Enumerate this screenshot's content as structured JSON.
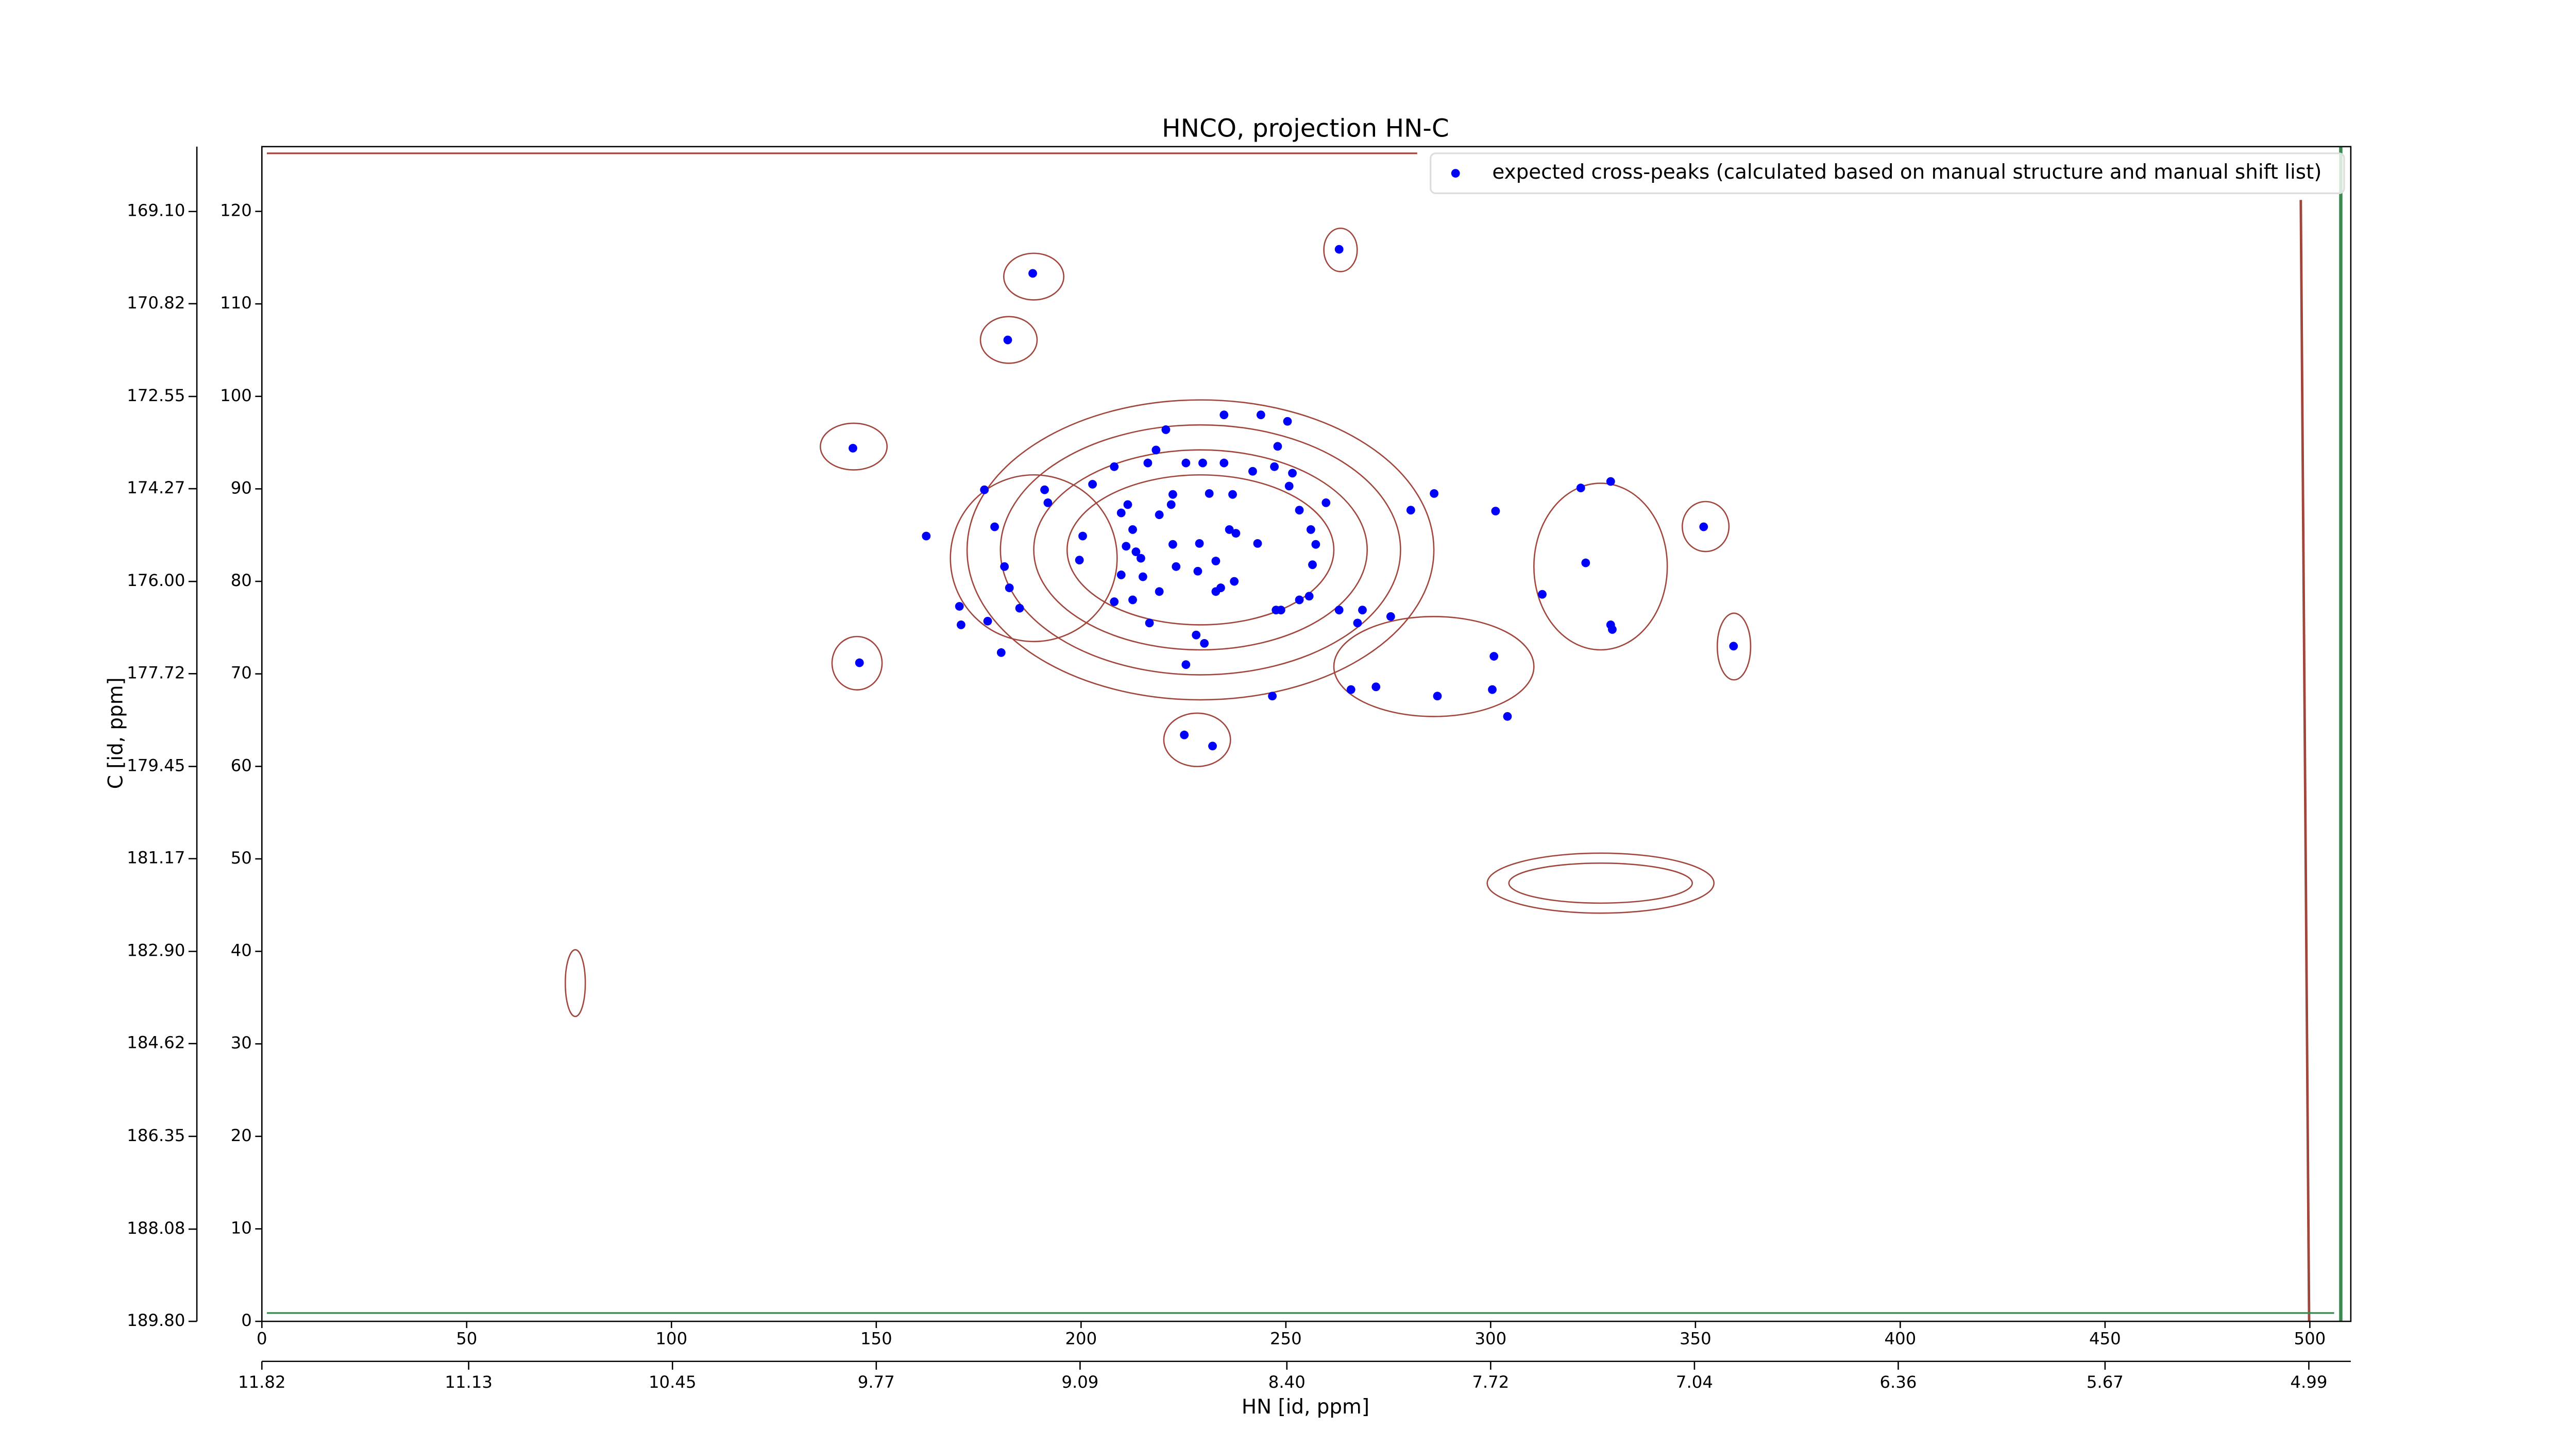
{
  "chart_data": {
    "type": "scatter",
    "title": "HNCO, projection HN-C",
    "xlabel": "HN [id, ppm]",
    "ylabel": "C [id, ppm]",
    "xlim": [
      0,
      510
    ],
    "xticks": [
      0,
      50,
      100,
      150,
      200,
      250,
      300,
      350,
      400,
      450,
      500
    ],
    "ylim": [
      0,
      127
    ],
    "yticks": [
      0,
      10,
      20,
      30,
      40,
      50,
      60,
      70,
      80,
      90,
      100,
      110,
      120
    ],
    "x2lim": [
      11.82,
      4.85
    ],
    "x2ticks": [
      11.82,
      11.13,
      10.45,
      9.77,
      9.09,
      {
        "value": 8.4,
        "label": "8.40"
      },
      7.72,
      7.04,
      6.36,
      5.67,
      4.99
    ],
    "y2lim": [
      189.8,
      167.89
    ],
    "y2ticks": [
      {
        "value": 169.1,
        "label": "169.10"
      },
      170.82,
      172.55,
      174.27,
      {
        "value": 176.0,
        "label": "176.00"
      },
      177.72,
      179.45,
      181.17,
      {
        "value": 182.9,
        "label": "182.90"
      },
      184.62,
      186.35,
      188.08,
      {
        "value": 189.8,
        "label": "189.80"
      }
    ],
    "legend": "upper right",
    "series": [
      {
        "name": "expected cross-peaks (calculated based on manual structure and manual shift list)",
        "color": "#0000ff",
        "x": [
          188.2,
          263,
          182.1,
          144.3,
          162.2,
          176.4,
          178.9,
          191.1,
          191.9,
          181.3,
          182.5,
          170.3,
          170.7,
          177.2,
          180.5,
          185,
          145.9,
          200.4,
          199.6,
          202.8,
          208.1,
          209.8,
          211.4,
          216.3,
          218.3,
          220.7,
          225.6,
          229.7,
          234.9,
          234.9,
          243.9,
          250.4,
          248,
          251.6,
          250.8,
          247.2,
          241.9,
          237,
          231.3,
          222.4,
          222,
          219.1,
          212.6,
          211,
          213.4,
          214.6,
          209.8,
          215.1,
          208.1,
          212.6,
          219.1,
          216.7,
          222.4,
          223.2,
          228.5,
          228.9,
          232.9,
          232.9,
          234.1,
          236.2,
          237.8,
          243.1,
          228.1,
          230.1,
          225.6,
          237.4,
          253.3,
          259.8,
          256.1,
          257.3,
          256.5,
          255.7,
          253.3,
          247.6,
          248.8,
          263,
          268.7,
          267.5,
          275.6,
          280.5,
          286.2,
          301.2,
          312.6,
          323.2,
          322,
          329.3,
          329.3,
          329.7,
          352,
          359.3,
          300.8,
          300.4,
          304.1,
          265.9,
          272,
          287,
          246.7,
          225.2,
          232.1
        ],
        "values": [
          113.3,
          115.9,
          106.1,
          94.4,
          84.9,
          89.9,
          85.9,
          89.9,
          88.5,
          81.6,
          79.3,
          77.3,
          75.3,
          75.7,
          72.3,
          77.1,
          71.2,
          84.9,
          82.3,
          90.5,
          92.4,
          87.4,
          88.3,
          92.8,
          94.2,
          96.4,
          92.8,
          92.8,
          98,
          92.8,
          98,
          97.3,
          94.6,
          91.7,
          90.3,
          92.4,
          91.9,
          89.4,
          89.5,
          89.4,
          88.3,
          87.2,
          85.6,
          83.8,
          83.2,
          82.5,
          80.7,
          80.5,
          77.8,
          78,
          78.9,
          75.5,
          84,
          81.6,
          81.1,
          84.1,
          82.2,
          78.9,
          79.3,
          85.6,
          85.2,
          84.1,
          74.2,
          73.3,
          71,
          80,
          87.7,
          88.5,
          85.6,
          84,
          81.8,
          78.4,
          78,
          76.9,
          76.9,
          76.9,
          76.9,
          75.5,
          76.2,
          87.7,
          89.5,
          87.6,
          78.6,
          82,
          90.1,
          90.8,
          75.3,
          74.8,
          85.9,
          73,
          71.9,
          68.3,
          65.4,
          68.3,
          68.6,
          67.6,
          67.6,
          63.4,
          62.2
        ]
      }
    ]
  }
}
